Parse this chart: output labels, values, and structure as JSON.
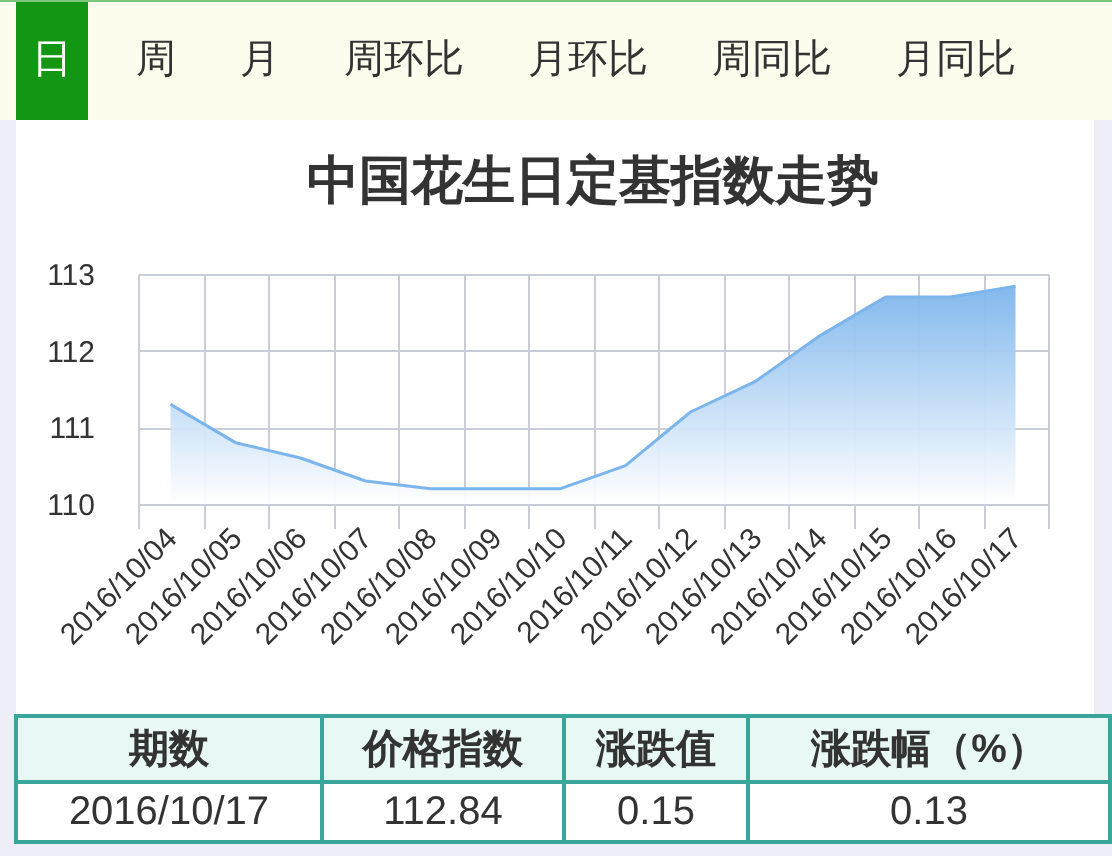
{
  "chart_data": [
    {
      "type": "other",
      "annotations": [
        "日",
        "周",
        "月",
        "周环比",
        "月环比",
        "周同比",
        "月同比"
      ]
    },
    {
      "type": "area",
      "title": "中国花生日定基指数走势",
      "categories": [
        "2016/10/04",
        "2016/10/05",
        "2016/10/06",
        "2016/10/07",
        "2016/10/08",
        "2016/10/09",
        "2016/10/10",
        "2016/10/11",
        "2016/10/12",
        "2016/10/13",
        "2016/10/14",
        "2016/10/15",
        "2016/10/16",
        "2016/10/17"
      ],
      "values": [
        111.3,
        110.8,
        110.6,
        110.3,
        110.2,
        110.2,
        110.2,
        110.5,
        111.2,
        111.6,
        112.2,
        112.7,
        112.7,
        112.84
      ],
      "color": "#7cb5ec",
      "ylim": [
        110,
        113
      ],
      "yticks": [
        110,
        111,
        112,
        113
      ],
      "grid": true
    },
    {
      "type": "other",
      "categories": [
        "期数",
        "价格指数",
        "涨跌值",
        "涨跌幅（%）"
      ],
      "annotations": [
        "2016/10/17",
        "112.84",
        "0.15",
        "0.13"
      ]
    }
  ]
}
